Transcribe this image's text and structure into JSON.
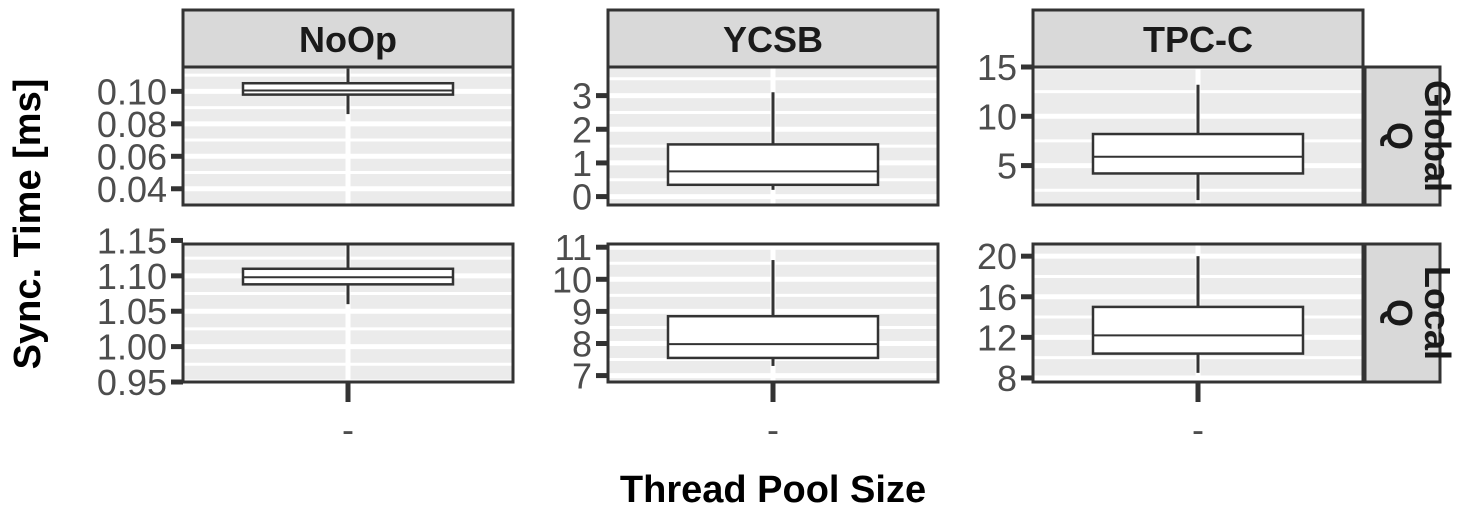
{
  "chart_data": {
    "type": "box",
    "xlabel": "Thread Pool Size",
    "ylabel": "Sync. Time [ms]",
    "x_tick_label": "-",
    "columns": [
      "NoOp",
      "YCSB",
      "TPC-C"
    ],
    "rows": [
      "Global\nQ",
      "Local\nQ"
    ],
    "colors": {
      "panel_bg": "#ebebeb",
      "grid": "#ffffff",
      "strip_bg": "#d9d9d9",
      "border": "#333333",
      "box_fill": "#ffffff",
      "box_line": "#333333"
    },
    "panels": [
      {
        "column": "NoOp",
        "row": "Global\nQ",
        "ylim": [
          0.03,
          0.115
        ],
        "yticks": [
          0.04,
          0.06,
          0.08,
          0.1
        ],
        "ytick_labels": [
          "0.04",
          "0.06",
          "0.08",
          "0.10"
        ],
        "box": {
          "whisker_low": 0.086,
          "q1": 0.098,
          "median": 0.1005,
          "q3": 0.105,
          "whisker_high": 0.114
        }
      },
      {
        "column": "YCSB",
        "row": "Global\nQ",
        "ylim": [
          -0.25,
          3.85
        ],
        "yticks": [
          0,
          1,
          2,
          3
        ],
        "ytick_labels": [
          "0",
          "1",
          "2",
          "3"
        ],
        "box": {
          "whisker_low": 0.2,
          "q1": 0.35,
          "median": 0.75,
          "q3": 1.55,
          "whisker_high": 3.1
        }
      },
      {
        "column": "TPC-C",
        "row": "Global\nQ",
        "ylim": [
          1.0,
          15.0
        ],
        "yticks": [
          5,
          10,
          15
        ],
        "ytick_labels": [
          "5",
          "10",
          "15"
        ],
        "box": {
          "whisker_low": 1.5,
          "q1": 4.2,
          "median": 5.9,
          "q3": 8.2,
          "whisker_high": 13.2
        }
      },
      {
        "column": "NoOp",
        "row": "Local\nQ",
        "ylim": [
          0.95,
          1.145
        ],
        "yticks": [
          0.95,
          1.0,
          1.05,
          1.1,
          1.15
        ],
        "ytick_labels": [
          "0.95",
          "1.00",
          "1.05",
          "1.10",
          "1.15"
        ],
        "box": {
          "whisker_low": 1.06,
          "q1": 1.088,
          "median": 1.098,
          "q3": 1.11,
          "whisker_high": 1.145
        }
      },
      {
        "column": "YCSB",
        "row": "Local\nQ",
        "ylim": [
          6.8,
          11.1
        ],
        "yticks": [
          7,
          8,
          9,
          10,
          11
        ],
        "ytick_labels": [
          "7",
          "8",
          "9",
          "10",
          "11"
        ],
        "box": {
          "whisker_low": 7.3,
          "q1": 7.55,
          "median": 7.98,
          "q3": 8.85,
          "whisker_high": 10.6
        }
      },
      {
        "column": "TPC-C",
        "row": "Local\nQ",
        "ylim": [
          7.6,
          21.2
        ],
        "yticks": [
          8,
          12,
          16,
          20
        ],
        "ytick_labels": [
          "8",
          "12",
          "16",
          "20"
        ],
        "box": {
          "whisker_low": 8.5,
          "q1": 10.4,
          "median": 12.2,
          "q3": 15.0,
          "whisker_high": 20.0
        }
      }
    ]
  }
}
